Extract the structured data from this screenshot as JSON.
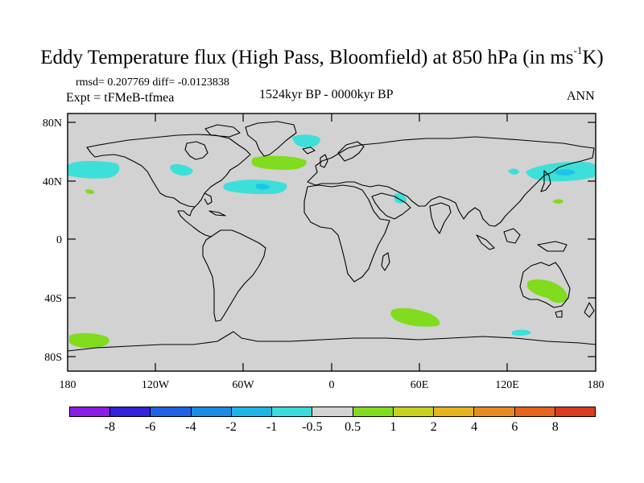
{
  "title": {
    "main": "Eddy Temperature flux (High Pass, Bloomfield) at 850 hPa (in ms",
    "exponent": "-1",
    "suffix": "K)"
  },
  "stats": "rmsd= 0.207769 diff= -0.0123838",
  "experiment": "Expt = tFMeB-tfmea",
  "period": "1524kyr BP - 0000kyr BP",
  "season": "ANN",
  "colors": {
    "land_mask": "#d2d2d2",
    "cyan": "#3de0d8",
    "cyan_dark": "#1ec6e6",
    "green": "#80dc1c"
  },
  "axes": {
    "lat_labels": [
      "80N",
      "40N",
      "0",
      "40S",
      "80S"
    ],
    "lon_labels": [
      "180",
      "120W",
      "60W",
      "0",
      "60E",
      "120E",
      "180"
    ]
  },
  "colorbar": {
    "colors": [
      "#8a1ee6",
      "#3322dc",
      "#1f64e6",
      "#1b8be6",
      "#1eb5e6",
      "#3cdcdc",
      "#d3d3d3",
      "#82dc1e",
      "#c8d21e",
      "#e6b41e",
      "#e68c1e",
      "#e6641e",
      "#dc3c1e"
    ],
    "labels": [
      "-8",
      "-6",
      "-4",
      "-2",
      "-1",
      "-0.5",
      "0.5",
      "1",
      "2",
      "4",
      "6",
      "8"
    ]
  }
}
